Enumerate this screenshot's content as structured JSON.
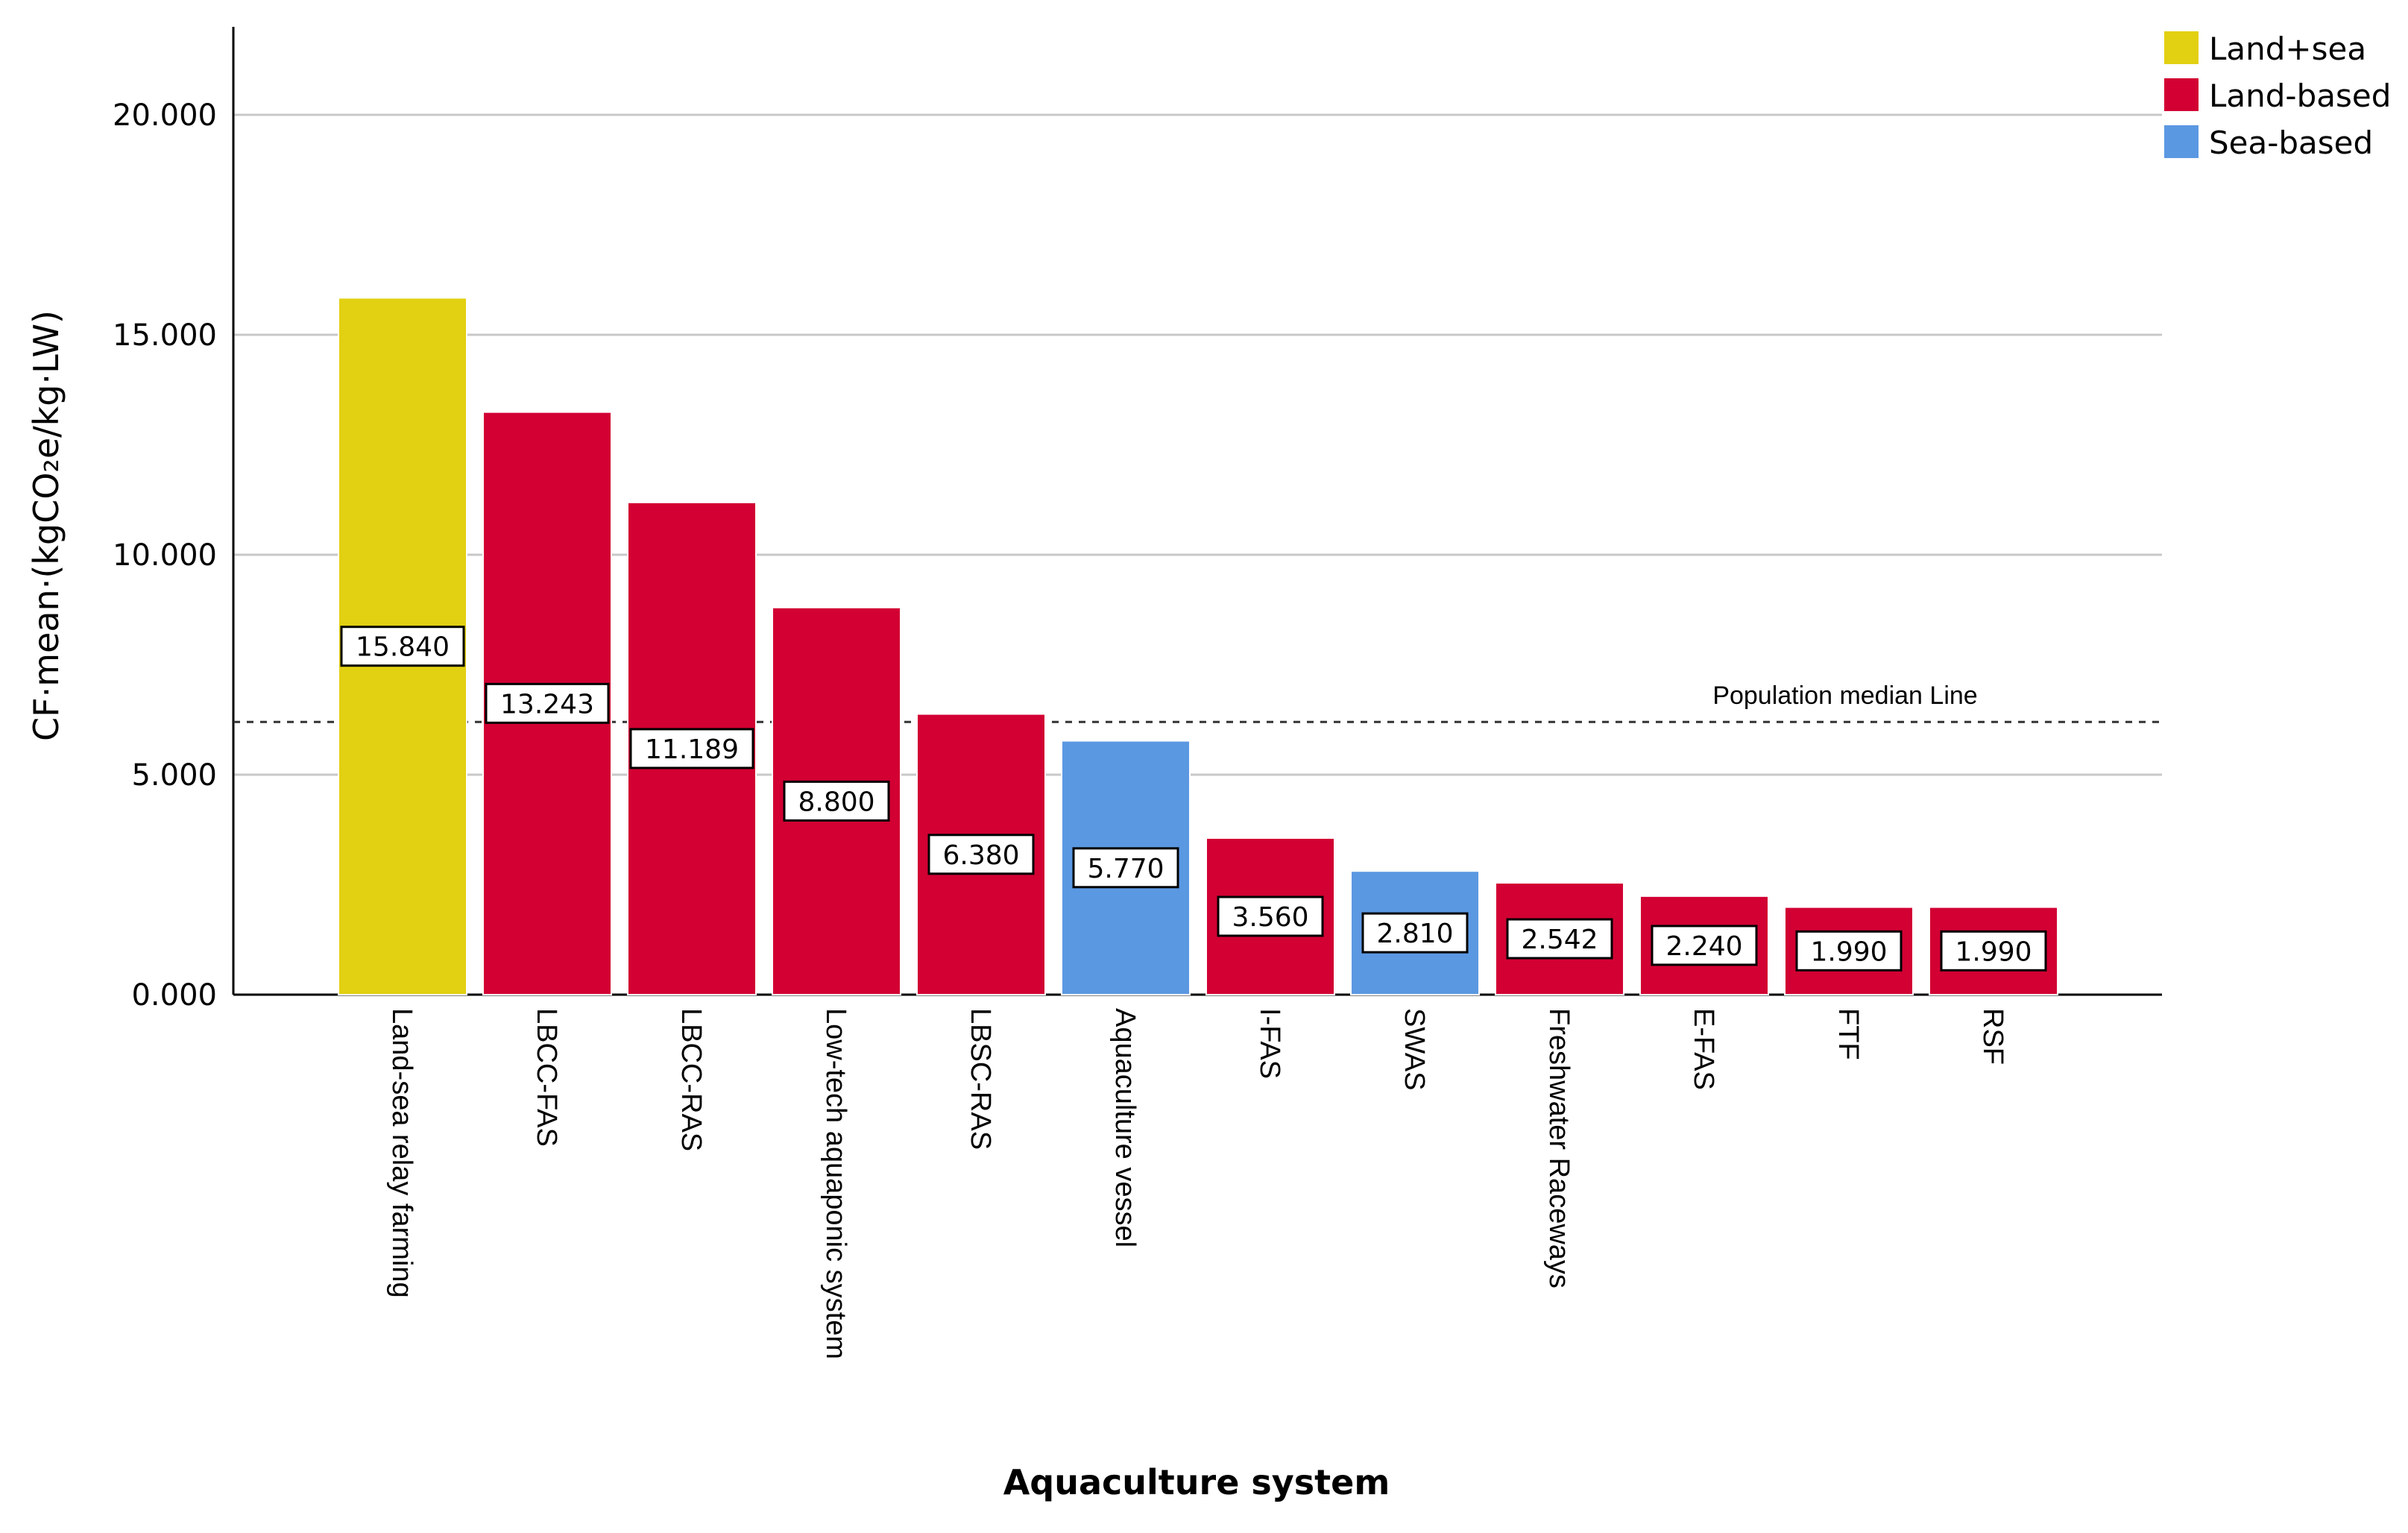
{
  "chart_data": {
    "type": "bar",
    "title": "",
    "xlabel": "Aquaculture system",
    "ylabel": "CF·mean·(kgCO₂e/kg·LW)",
    "ylim": [
      0,
      22
    ],
    "yticks": [
      0,
      5,
      10,
      15,
      20
    ],
    "ytick_labels": [
      "0.000",
      "5.000",
      "10.000",
      "15.000",
      "20.000"
    ],
    "grid": true,
    "legend_position": "top-right",
    "legend": [
      {
        "name": "Land+sea",
        "color": "#E2D012"
      },
      {
        "name": "Land-based",
        "color": "#D20033"
      },
      {
        "name": "Sea-based",
        "color": "#5B98E2"
      }
    ],
    "categories": [
      "Land-sea relay farming",
      "LBCC-FAS",
      "LBCC-RAS",
      "Low-tech aquaponic system",
      "LBSC-RAS",
      "Aquaculture vessel",
      "I-FAS",
      "SWAS",
      "Freshwater Raceways",
      "E-FAS",
      "FTF",
      "RSF"
    ],
    "values": [
      15.84,
      13.243,
      11.189,
      8.8,
      6.38,
      5.77,
      3.56,
      2.81,
      2.542,
      2.24,
      1.99,
      1.99
    ],
    "value_labels": [
      "15.840",
      "13.243",
      "11.189",
      "8.800",
      "6.380",
      "5.770",
      "3.560",
      "2.810",
      "2.542",
      "2.240",
      "1.990",
      "1.990"
    ],
    "groups": [
      "Land+sea",
      "Land-based",
      "Land-based",
      "Land-based",
      "Land-based",
      "Sea-based",
      "Land-based",
      "Sea-based",
      "Land-based",
      "Land-based",
      "Land-based",
      "Land-based"
    ],
    "reference_line": {
      "label": "Population median Line",
      "value": 6.2,
      "style": "dotted"
    }
  }
}
